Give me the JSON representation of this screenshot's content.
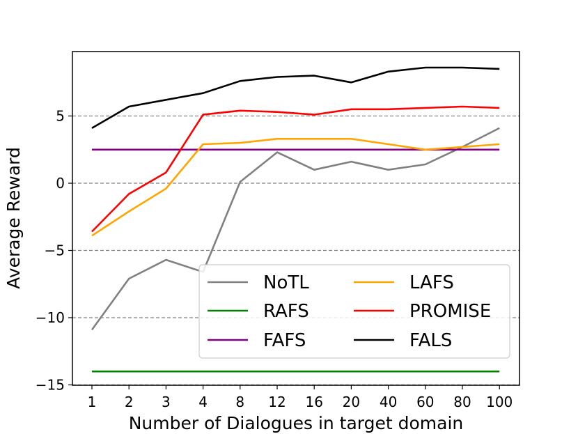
{
  "chart_data": {
    "type": "line",
    "title": "",
    "xlabel": "Number of Dialogues in target domain",
    "ylabel": "Average Reward",
    "categories": [
      "1",
      "2",
      "3",
      "4",
      "8",
      "12",
      "16",
      "20",
      "40",
      "60",
      "80",
      "100"
    ],
    "ylim": [
      -15,
      10
    ],
    "yticks": [
      5,
      0,
      -5,
      -10,
      -15
    ],
    "ytick_labels": [
      "5",
      "0",
      "−5",
      "−10",
      "−15"
    ],
    "grid": "horizontal dashed",
    "legend_position": "lower-right",
    "series": [
      {
        "name": "NoTL",
        "color": "#808080",
        "values": [
          -10.9,
          -7.1,
          -5.7,
          -6.6,
          0.1,
          2.3,
          1.0,
          1.6,
          1.0,
          1.4,
          2.7,
          4.1
        ]
      },
      {
        "name": "RAFS",
        "color": "#008000",
        "values": [
          -14.0,
          -14.0,
          -14.0,
          -14.0,
          -14.0,
          -14.0,
          -14.0,
          -14.0,
          -14.0,
          -14.0,
          -14.0,
          -14.0
        ]
      },
      {
        "name": "FAFS",
        "color": "#800080",
        "values": [
          2.5,
          2.5,
          2.5,
          2.5,
          2.5,
          2.5,
          2.5,
          2.5,
          2.5,
          2.5,
          2.5,
          2.5
        ]
      },
      {
        "name": "LAFS",
        "color": "#FFA500",
        "values": [
          -3.9,
          -2.1,
          -0.4,
          2.9,
          3.0,
          3.3,
          3.3,
          3.3,
          2.9,
          2.5,
          2.7,
          2.9
        ]
      },
      {
        "name": "PROMISE",
        "color": "#FF0000",
        "values": [
          -3.6,
          -0.8,
          0.8,
          5.1,
          5.4,
          5.3,
          5.1,
          5.5,
          5.5,
          5.6,
          5.7,
          5.6
        ]
      },
      {
        "name": "FALS",
        "color": "#000000",
        "values": [
          4.1,
          5.7,
          6.2,
          6.7,
          7.6,
          7.9,
          8.0,
          7.5,
          8.3,
          8.6,
          8.6,
          8.5
        ]
      }
    ]
  }
}
